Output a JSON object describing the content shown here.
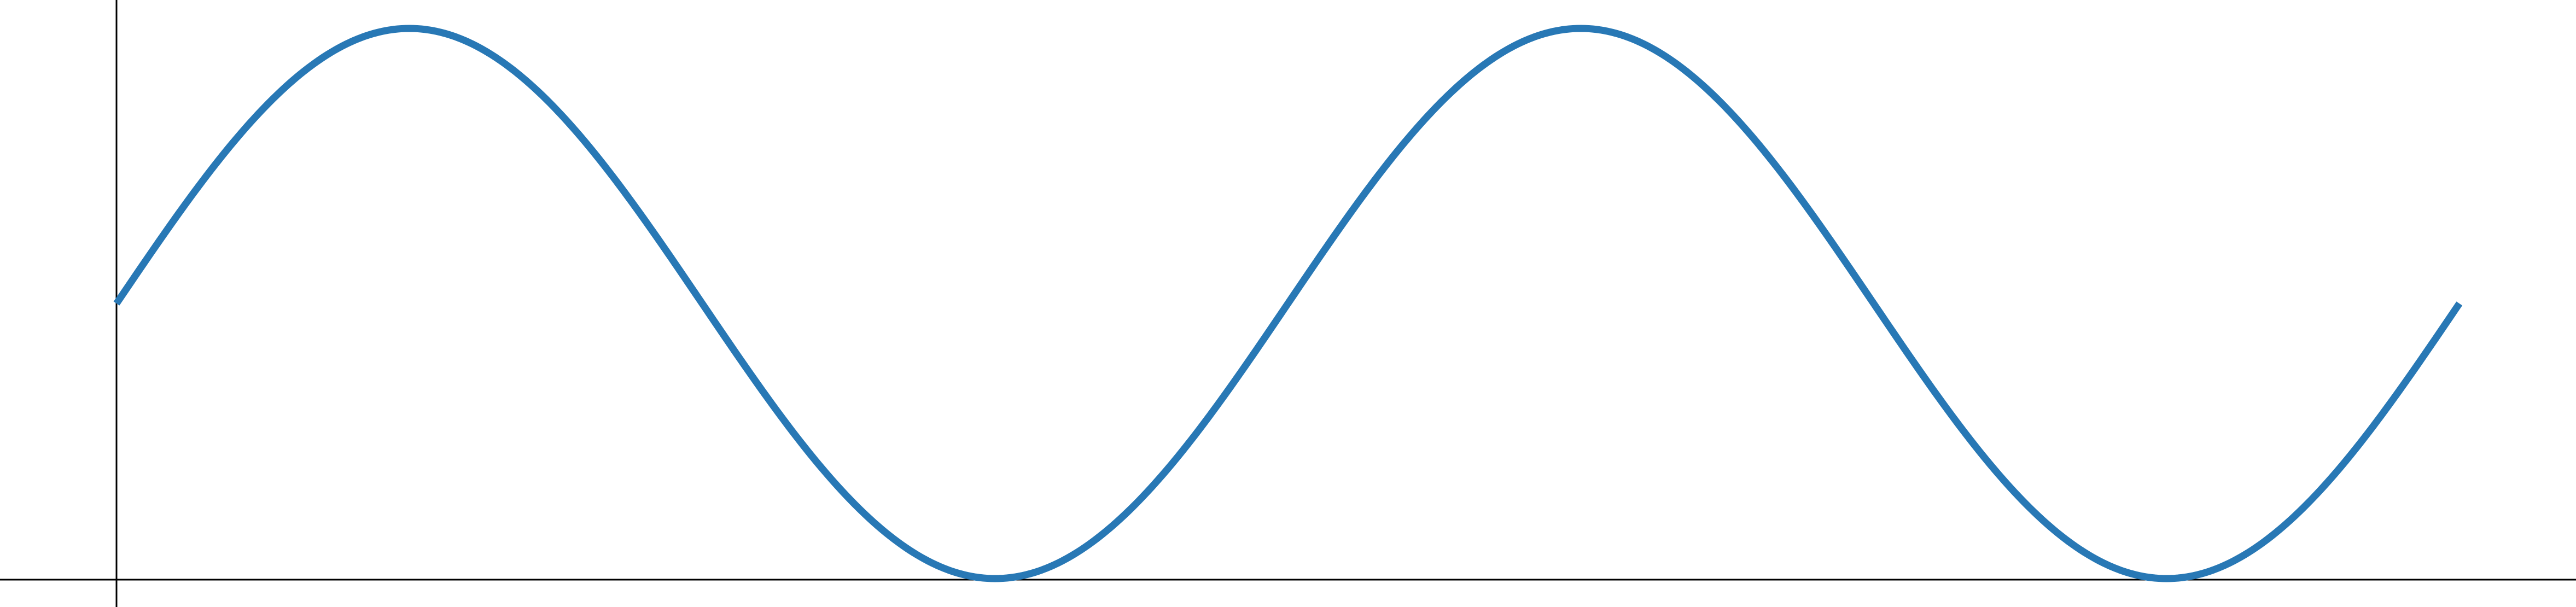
{
  "chart_data": {
    "type": "line",
    "title": "",
    "xlabel": "",
    "ylabel": "",
    "xlim": [
      0,
      12.57
    ],
    "ylim": [
      -1,
      1
    ],
    "grid": false,
    "legend": "none",
    "series": [
      {
        "color": "#2878b5",
        "function": "sin",
        "x": [
          0,
          0.5236,
          1.0472,
          1.5708,
          2.0944,
          2.618,
          3.1416,
          3.6652,
          4.1888,
          4.7124,
          5.236,
          5.7596,
          6.2832,
          6.8068,
          7.3304,
          7.854,
          8.3776,
          8.9012,
          9.4248,
          9.9484,
          10.472,
          10.9956,
          11.5192,
          12.0428,
          12.5664
        ],
        "y": [
          0,
          0.5,
          0.866,
          1,
          0.866,
          0.5,
          0,
          -0.5,
          -0.866,
          -1,
          -0.866,
          -0.5,
          0,
          0.5,
          0.866,
          1,
          0.866,
          0.5,
          0,
          -0.5,
          -0.866,
          -1,
          -0.866,
          -0.5,
          0
        ]
      }
    ]
  }
}
